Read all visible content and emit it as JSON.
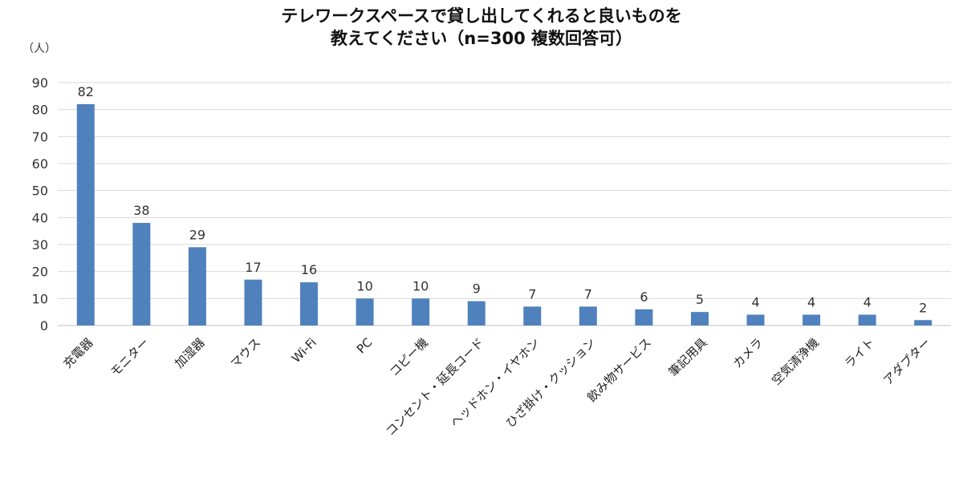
{
  "chart_data": {
    "type": "bar",
    "title_line1": "テレワークスペースで貸し出してくれると良いものを",
    "title_line2": "教えてください（n=300 複数回答可）",
    "unit_label": "（人）",
    "xlabel": "",
    "ylabel": "",
    "ylim": [
      0,
      90
    ],
    "yticks": [
      0,
      10,
      20,
      30,
      40,
      50,
      60,
      70,
      80,
      90
    ],
    "grid": true,
    "legend": "none",
    "bar_color": "#4f81bd",
    "grid_color": "#d9d9d9",
    "categories": [
      "充電器",
      "モニター",
      "加湿器",
      "マウス",
      "Wi-Fi",
      "PC",
      "コピー機",
      "コンセント・延長コード",
      "ヘッドホン・イヤホン",
      "ひざ掛け・クッション",
      "飲み物サービス",
      "筆記用具",
      "カメラ",
      "空気清浄機",
      "ライト",
      "アダプター"
    ],
    "values": [
      82,
      38,
      29,
      17,
      16,
      10,
      10,
      9,
      7,
      7,
      6,
      5,
      4,
      4,
      4,
      2
    ]
  }
}
